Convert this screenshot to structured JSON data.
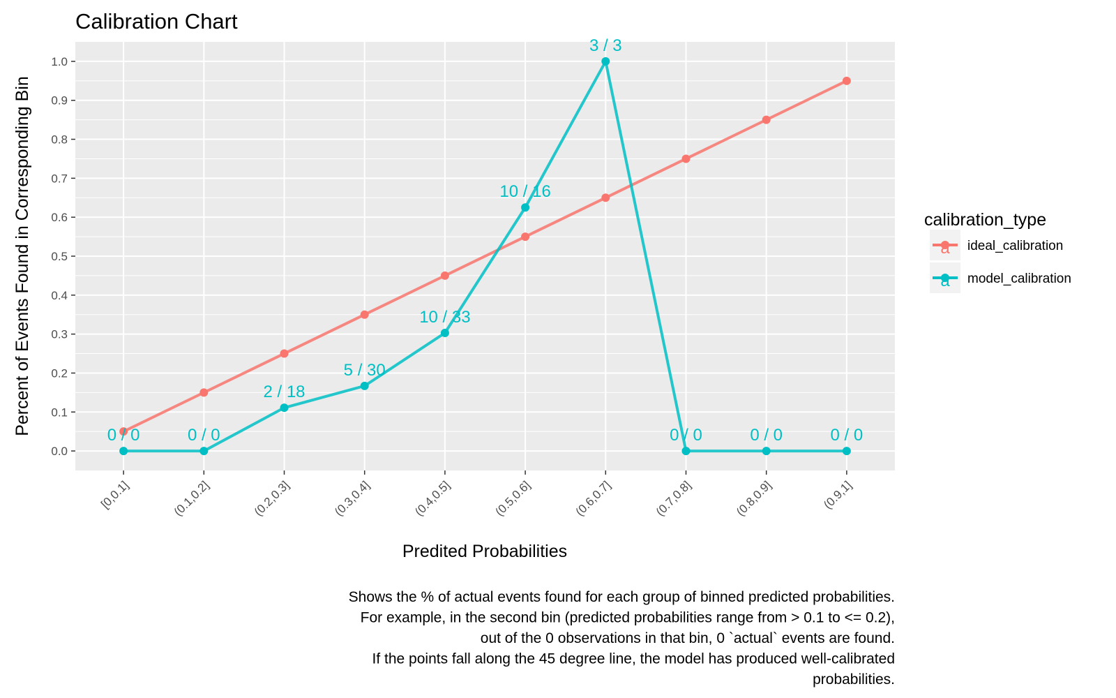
{
  "chart_data": {
    "type": "line",
    "title": "Calibration Chart",
    "xlabel": "Predited Probabilities",
    "ylabel": "Percent of Events Found in Corresponding Bin",
    "categories": [
      "[0,0.1]",
      "(0.1,0.2]",
      "(0.2,0.3]",
      "(0.3,0.4]",
      "(0.4,0.5]",
      "(0.5,0.6]",
      "(0.6,0.7]",
      "(0.7,0.8]",
      "(0.8,0.9]",
      "(0.9,1]"
    ],
    "ylim": [
      -0.05,
      1.05
    ],
    "yticks": [
      0.0,
      0.1,
      0.2,
      0.3,
      0.4,
      0.5,
      0.6,
      0.7,
      0.8,
      0.9,
      1.0
    ],
    "ytick_labels": [
      "0.0",
      "0.1",
      "0.2",
      "0.3",
      "0.4",
      "0.5",
      "0.6",
      "0.7",
      "0.8",
      "0.9",
      "1.0"
    ],
    "grid": true,
    "legend": {
      "title": "calibration_type",
      "position": "right",
      "key_glyph": "a"
    },
    "series": [
      {
        "name": "ideal_calibration",
        "color": "#F8766D",
        "values": [
          0.05,
          0.15,
          0.25,
          0.35,
          0.45,
          0.55,
          0.65,
          0.75,
          0.85,
          0.95
        ]
      },
      {
        "name": "model_calibration",
        "color": "#00BFC4",
        "values": [
          0.0,
          0.0,
          0.111,
          0.167,
          0.303,
          0.625,
          1.0,
          0.0,
          0.0,
          0.0
        ],
        "labels": [
          "0 / 0",
          "0 / 0",
          "2 / 18",
          "5 / 30",
          "10 / 33",
          "10 / 16",
          "3 / 3",
          "0 / 0",
          "0 / 0",
          "0 / 0"
        ]
      }
    ],
    "caption": [
      "Shows the % of actual events found for each group of binned predicted probabilities.",
      "For example, in the second bin (predicted probabilities range from > 0.1 to <= 0.2),",
      "out of the 0 observations in that bin, 0 `actual` events are found.",
      "If the points fall along the 45 degree line, the model has produced well-calibrated",
      "probabilities."
    ],
    "colors": {
      "panel_background": "#EBEBEB",
      "grid": "#FFFFFF"
    }
  }
}
